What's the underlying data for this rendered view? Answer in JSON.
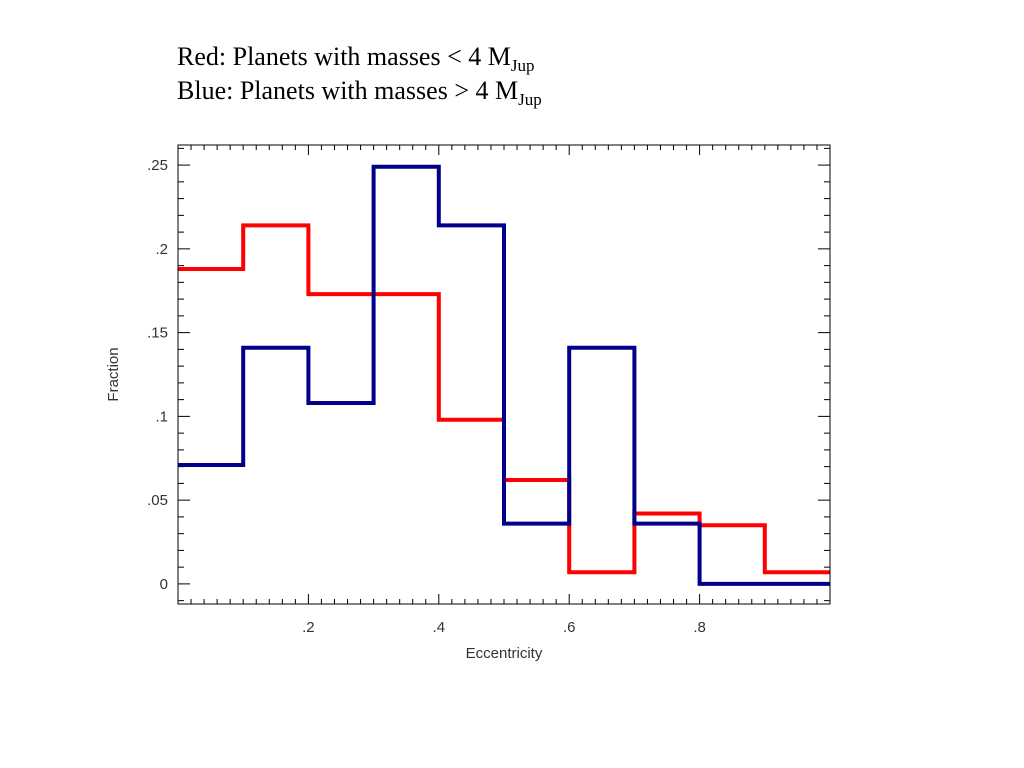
{
  "caption": {
    "line1_text": "Red: Planets with masses < 4 M",
    "line1_sub": "Jup",
    "line2_text": "Blue: Planets with masses > 4 M",
    "line2_sub": "Jup"
  },
  "chart_data": {
    "type": "line",
    "title": "",
    "xlabel": "Eccentricity",
    "ylabel": "Fraction",
    "xlim": [
      0,
      1
    ],
    "ylim": [
      -0.012,
      0.262
    ],
    "xticks": [
      0.2,
      0.4,
      0.6,
      0.8
    ],
    "xtick_labels": [
      ".2",
      ".4",
      ".6",
      ".8"
    ],
    "yticks": [
      0,
      0.05,
      0.1,
      0.15,
      0.2,
      0.25
    ],
    "ytick_labels": [
      "0",
      ".05",
      ".1",
      ".15",
      ".2",
      ".25"
    ],
    "grid": false,
    "legend": "none",
    "bin_edges": [
      0,
      0.1,
      0.2,
      0.3,
      0.4,
      0.5,
      0.6,
      0.7,
      0.8,
      0.9,
      1.0
    ],
    "series": [
      {
        "color": "#ff0000",
        "values": [
          0.188,
          0.214,
          0.173,
          0.173,
          0.098,
          0.062,
          0.007,
          0.042,
          0.035,
          0.007
        ]
      },
      {
        "color": "#00008b",
        "values": [
          0.071,
          0.141,
          0.108,
          0.249,
          0.214,
          0.036,
          0.141,
          0.036,
          0.0,
          0.0
        ]
      }
    ]
  }
}
